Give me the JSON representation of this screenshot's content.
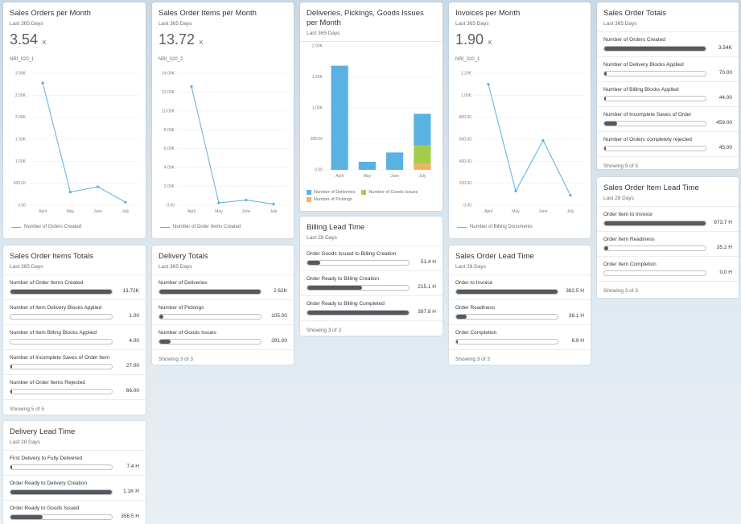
{
  "cards": {
    "sales_orders_month": {
      "title": "Sales Orders per Month",
      "subtitle": "Last 365 Days",
      "kpi": "3.54",
      "kpi_unit": "K",
      "code": "NRI_020_1",
      "legend": "Number of Orders Created",
      "chart_data": {
        "type": "line",
        "categories": [
          "April",
          "May",
          "June",
          "July"
        ],
        "yticks": [
          "0.00",
          "500.00",
          "1.00K",
          "1.50K",
          "2.00K",
          "2.50K",
          "3.00K"
        ],
        "ylim": [
          0,
          3000
        ],
        "series": [
          {
            "name": "Number of Orders Created",
            "values": [
              2780,
              300,
              420,
              70
            ]
          }
        ]
      }
    },
    "sales_order_items_month": {
      "title": "Sales Order Items per Month",
      "subtitle": "Last 365 Days",
      "kpi": "13.72",
      "kpi_unit": "K",
      "code": "NRI_020_2",
      "legend": "Number of Order Items Created",
      "chart_data": {
        "type": "line",
        "categories": [
          "April",
          "May",
          "June",
          "July"
        ],
        "yticks": [
          "0.00",
          "2.00K",
          "4.00K",
          "6.00K",
          "8.00K",
          "10.00K",
          "12.00K",
          "14.00K"
        ],
        "ylim": [
          0,
          14000
        ],
        "series": [
          {
            "name": "Number of Order Items Created",
            "values": [
              12600,
              250,
              550,
              120
            ]
          }
        ]
      }
    },
    "deliveries": {
      "title": "Deliveries, Pickings, Goods Issues per Month",
      "subtitle": "Last 365 Days",
      "legend": [
        "Number of Deliveries",
        "Number of Goods Issues",
        "Number of Pickings"
      ],
      "chart_data": {
        "type": "bar",
        "categories": [
          "April",
          "May",
          "June",
          "July"
        ],
        "yticks": [
          "0.00",
          "500.00",
          "1.00K",
          "1.50K",
          "2.00K"
        ],
        "ylim": [
          0,
          2000
        ],
        "series": [
          {
            "name": "Number of Deliveries",
            "values": [
              1680,
              130,
              280,
              510
            ]
          },
          {
            "name": "Number of Goods Issues",
            "values": [
              0,
              0,
              0,
              300
            ]
          },
          {
            "name": "Number of Pickings",
            "values": [
              0,
              0,
              0,
              95
            ]
          }
        ]
      }
    },
    "invoices_month": {
      "title": "Invoices per Month",
      "subtitle": "Last 365 Days",
      "kpi": "1.90",
      "kpi_unit": "K",
      "code": "NRI_020_1",
      "legend": "Number of Billing Documents",
      "chart_data": {
        "type": "line",
        "categories": [
          "April",
          "May",
          "June",
          "July"
        ],
        "yticks": [
          "0.00",
          "200.00",
          "400.00",
          "600.00",
          "800.00",
          "1.00K",
          "1.20K"
        ],
        "ylim": [
          0,
          1200
        ],
        "series": [
          {
            "name": "Number of Billing Documents",
            "values": [
              1100,
              130,
              590,
              90
            ]
          }
        ]
      }
    },
    "sales_order_totals": {
      "title": "Sales Order Totals",
      "subtitle": "Last 365 Days",
      "rows": [
        {
          "label": "Number of Orders Created",
          "value": "3.54K",
          "fill": 1.0
        },
        {
          "label": "Number of Delivery Blocks Applied",
          "value": "70.00",
          "fill": 0.02
        },
        {
          "label": "Number of Billing Blocks Applied",
          "value": "44.00",
          "fill": 0.013
        },
        {
          "label": "Number of Incomplete Saves of Order",
          "value": "459.00",
          "fill": 0.13
        },
        {
          "label": "Number of Orders completely rejected",
          "value": "45.00",
          "fill": 0.013
        }
      ],
      "footer": "Showing 5 of 5"
    },
    "sales_order_item_lead": {
      "title": "Sales Order Item Lead Time",
      "subtitle": "Last 28 Days",
      "rows": [
        {
          "label": "Order Item to Invoice",
          "value": "973.7 H",
          "fill": 1.0
        },
        {
          "label": "Order Item Readiness",
          "value": "35.2 H",
          "fill": 0.036
        },
        {
          "label": "Order Item Completion",
          "value": "0.0 H",
          "fill": 0.0
        }
      ],
      "footer": "Showing 3 of 3"
    },
    "sales_order_items_totals": {
      "title": "Sales Order Items Totals",
      "subtitle": "Last 365 Days",
      "rows": [
        {
          "label": "Number of Order Items Created",
          "value": "13.72K",
          "fill": 1.0
        },
        {
          "label": "Number of Item Delivery Blocks Applied",
          "value": "1.00",
          "fill": 0.0
        },
        {
          "label": "Number of Item Billing Blocks Applied",
          "value": "4.00",
          "fill": 0.0
        },
        {
          "label": "Number of Incomplete Saves of Order Item",
          "value": "27.00",
          "fill": 0.002
        },
        {
          "label": "Number of Order Items Rejected",
          "value": "66.00",
          "fill": 0.005
        }
      ],
      "footer": "Showing 5 of 5"
    },
    "delivery_totals": {
      "title": "Delivery Totals",
      "subtitle": "Last 365 Days",
      "rows": [
        {
          "label": "Number of Deliveries",
          "value": "2.62K",
          "fill": 1.0
        },
        {
          "label": "Number of Pickings",
          "value": "105.00",
          "fill": 0.04
        },
        {
          "label": "Number of Goods Issues",
          "value": "291.00",
          "fill": 0.111
        }
      ],
      "footer": "Showing 3 of 3"
    },
    "billing_lead": {
      "title": "Billing Lead Time",
      "subtitle": "Last 28 Days",
      "rows": [
        {
          "label": "Order Goods Issued to Billing Creation",
          "value": "51.4 H",
          "fill": 0.129
        },
        {
          "label": "Order Ready to Billing Creation",
          "value": "215.1 H",
          "fill": 0.54
        },
        {
          "label": "Order Ready to Billing Completed",
          "value": "397.8 H",
          "fill": 1.0
        }
      ],
      "footer": "Showing 3 of 3"
    },
    "sales_order_lead": {
      "title": "Sales Order Lead Time",
      "subtitle": "Last 28 Days",
      "rows": [
        {
          "label": "Order to Invoice",
          "value": "382.5 H",
          "fill": 1.0
        },
        {
          "label": "Order Readiness",
          "value": "38.1 H",
          "fill": 0.1
        },
        {
          "label": "Order Completion",
          "value": "6.9 H",
          "fill": 0.018
        }
      ],
      "footer": "Showing 3 of 3"
    },
    "delivery_lead": {
      "title": "Delivery Lead Time",
      "subtitle": "Last 28 Days",
      "rows": [
        {
          "label": "First Delivery to Fully Delivered",
          "value": "7.4 H",
          "fill": 0.005
        },
        {
          "label": "Order Ready to Delivery Creation",
          "value": "1.1K H",
          "fill": 1.0
        },
        {
          "label": "Order Ready to Goods Issued",
          "value": "356.5 H",
          "fill": 0.32
        }
      ],
      "footer": ""
    }
  },
  "colors": {
    "line": "#5aafdf",
    "bar_fill": "#565a5e",
    "deliveries": "#5ab2e3",
    "goods_issues": "#a4cc4b",
    "pickings": "#f3b25f"
  }
}
